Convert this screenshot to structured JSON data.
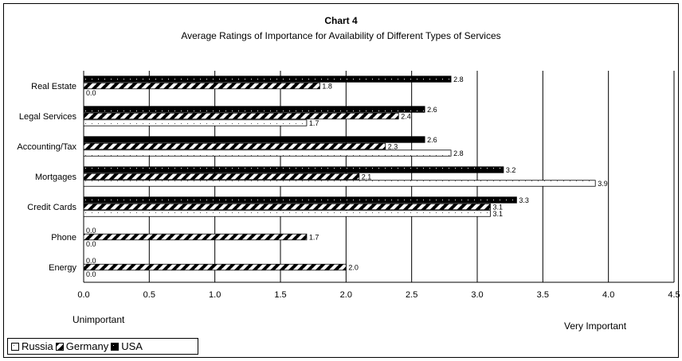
{
  "chart_data": {
    "type": "bar",
    "orientation": "horizontal",
    "title": "Chart 4",
    "subtitle": "Average Ratings of Importance for Availability of Different Types of Services",
    "categories": [
      "Real Estate",
      "Legal Services",
      "Accounting/Tax",
      "Mortgages",
      "Credit Cards",
      "Phone",
      "Energy"
    ],
    "series": [
      {
        "name": "Russia",
        "values": [
          0.0,
          1.7,
          2.8,
          3.9,
          3.1,
          0.0,
          0.0
        ],
        "labels": [
          "0.0",
          "1.7",
          "2.8",
          "3.9",
          "3.1",
          "0.0",
          "0.0"
        ]
      },
      {
        "name": "Germany",
        "values": [
          1.8,
          2.4,
          2.3,
          2.1,
          3.1,
          1.7,
          2.0
        ],
        "labels": [
          "1.8",
          "2.4",
          "2.3",
          "2.1",
          "3.1",
          "1.7",
          "2.0"
        ]
      },
      {
        "name": "USA",
        "values": [
          2.8,
          2.6,
          2.6,
          3.2,
          3.3,
          0.0,
          0.0
        ],
        "labels": [
          "2.8",
          "2.6",
          "2.6",
          "3.2",
          "3.3",
          "0.0",
          "0.0"
        ]
      }
    ],
    "xlim": [
      0,
      4.5
    ],
    "xticks": [
      "0.0",
      "0.5",
      "1.0",
      "1.5",
      "2.0",
      "2.5",
      "3.0",
      "3.5",
      "4.0",
      "4.5"
    ],
    "grid": "vertical",
    "legend_position": "bottom-left",
    "low_label": "Unimportant",
    "high_label": "Very Important"
  }
}
